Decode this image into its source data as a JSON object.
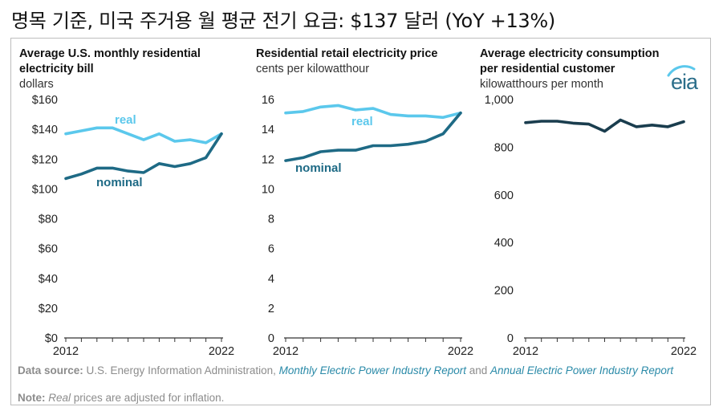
{
  "title": "명목 기준, 미국 주거용 월 평균 전기 요금: $137 달러 (YoY +13%)",
  "colors": {
    "real": "#5bc8ec",
    "nominal": "#1e6a85",
    "consumption": "#1a3d4e",
    "axis": "#333333",
    "logo": "#2b6e8a"
  },
  "logo_text": "eia",
  "source": {
    "label": "Data source:",
    "text1": " U.S. Energy Information Administration, ",
    "link1": "Monthly Electric Power Industry Report",
    "text2": " and ",
    "link2": "Annual Electric Power Industry Report"
  },
  "note": {
    "label": "Note:",
    "italic": "Real",
    "text": " prices are adjusted for inflation."
  },
  "chart_data": [
    {
      "type": "line",
      "title": "Average U.S. monthly residential electricity bill",
      "title_lines": [
        "Average U.S. monthly residential",
        "electricity bill"
      ],
      "unit": "dollars",
      "x": [
        2012,
        2013,
        2014,
        2015,
        2016,
        2017,
        2018,
        2019,
        2020,
        2021,
        2022
      ],
      "xticks": [
        "2012",
        "2022"
      ],
      "ylim": [
        0,
        160
      ],
      "yticks": [
        0,
        20,
        40,
        60,
        80,
        100,
        120,
        140,
        160
      ],
      "ytick_labels": [
        "$0",
        "$20",
        "$40",
        "$60",
        "$80",
        "$100",
        "$120",
        "$140",
        "$160"
      ],
      "series": [
        {
          "name": "real",
          "color": "#5bc8ec",
          "values": [
            137,
            139,
            141,
            141,
            137,
            133,
            137,
            132,
            133,
            131,
            137
          ]
        },
        {
          "name": "nominal",
          "color": "#1e6a85",
          "values": [
            107,
            110,
            114,
            114,
            112,
            111,
            117,
            115,
            117,
            121,
            137
          ]
        }
      ]
    },
    {
      "type": "line",
      "title": "Residential retail electricity price",
      "title_lines": [
        "Residential retail electricity price"
      ],
      "unit": "cents per kilowatthour",
      "x": [
        2012,
        2013,
        2014,
        2015,
        2016,
        2017,
        2018,
        2019,
        2020,
        2021,
        2022
      ],
      "xticks": [
        "2012",
        "2022"
      ],
      "ylim": [
        0,
        16
      ],
      "yticks": [
        0,
        2,
        4,
        6,
        8,
        10,
        12,
        14,
        16
      ],
      "ytick_labels": [
        "0",
        "2",
        "4",
        "6",
        "8",
        "10",
        "12",
        "14",
        "16"
      ],
      "series": [
        {
          "name": "real",
          "color": "#5bc8ec",
          "values": [
            15.1,
            15.2,
            15.5,
            15.6,
            15.3,
            15.4,
            15.0,
            14.9,
            14.9,
            14.8,
            15.1
          ]
        },
        {
          "name": "nominal",
          "color": "#1e6a85",
          "values": [
            11.9,
            12.1,
            12.5,
            12.6,
            12.6,
            12.9,
            12.9,
            13.0,
            13.2,
            13.7,
            15.1
          ]
        }
      ]
    },
    {
      "type": "line",
      "title": "Average electricity consumption per residential customer",
      "title_lines": [
        "Average electricity consumption",
        "per residential customer"
      ],
      "unit": "kilowatthours per month",
      "x": [
        2012,
        2013,
        2014,
        2015,
        2016,
        2017,
        2018,
        2019,
        2020,
        2021,
        2022
      ],
      "xticks": [
        "2012",
        "2022"
      ],
      "ylim": [
        0,
        1000
      ],
      "yticks": [
        0,
        200,
        400,
        600,
        800,
        1000
      ],
      "ytick_labels": [
        "0",
        "200",
        "400",
        "600",
        "800",
        "1,000"
      ],
      "series": [
        {
          "color": "#1a3d4e",
          "values": [
            903,
            909,
            909,
            901,
            897,
            867,
            914,
            886,
            893,
            886,
            907
          ]
        }
      ]
    }
  ]
}
